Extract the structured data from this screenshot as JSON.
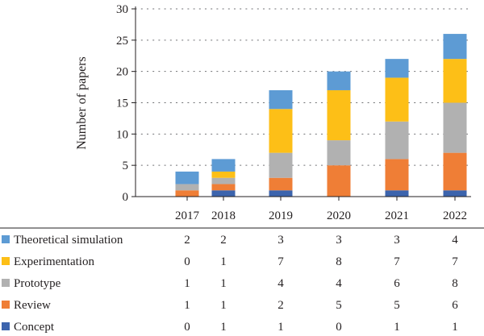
{
  "chart_data": {
    "type": "bar",
    "stacked": true,
    "categories": [
      "2017",
      "2018",
      "2019",
      "2020",
      "2021",
      "2022"
    ],
    "ylabel": "Number of papers",
    "xlabel": "",
    "title": "",
    "ylim": [
      0,
      30
    ],
    "yticks": [
      "0",
      "5",
      "10",
      "15",
      "20",
      "25",
      "30"
    ],
    "grid": "horizontal dotted",
    "legend": "table below chart",
    "series": [
      {
        "name": "Concept",
        "color": "#3c64ad",
        "values": [
          0,
          1,
          1,
          0,
          1,
          1
        ]
      },
      {
        "name": "Review",
        "color": "#ef7e36",
        "values": [
          1,
          1,
          2,
          5,
          5,
          6
        ]
      },
      {
        "name": "Prototype",
        "color": "#b1b1b1",
        "values": [
          1,
          1,
          4,
          4,
          6,
          8
        ]
      },
      {
        "name": "Experimentation",
        "color": "#fdbf17",
        "values": [
          0,
          1,
          7,
          8,
          7,
          7
        ]
      },
      {
        "name": "Theoretical simulation",
        "color": "#5d9bd4",
        "values": [
          2,
          2,
          3,
          3,
          3,
          4
        ]
      }
    ],
    "table_rows": [
      {
        "name": "Theoretical simulation",
        "values": [
          "2",
          "2",
          "3",
          "3",
          "3",
          "4"
        ]
      },
      {
        "name": "Experimentation",
        "values": [
          "0",
          "1",
          "7",
          "8",
          "7",
          "7"
        ]
      },
      {
        "name": "Prototype",
        "values": [
          "1",
          "1",
          "4",
          "4",
          "6",
          "8"
        ]
      },
      {
        "name": "Review",
        "values": [
          "1",
          "1",
          "2",
          "5",
          "5",
          "6"
        ]
      },
      {
        "name": "Concept",
        "values": [
          "0",
          "1",
          "1",
          "0",
          "1",
          "1"
        ]
      }
    ]
  }
}
